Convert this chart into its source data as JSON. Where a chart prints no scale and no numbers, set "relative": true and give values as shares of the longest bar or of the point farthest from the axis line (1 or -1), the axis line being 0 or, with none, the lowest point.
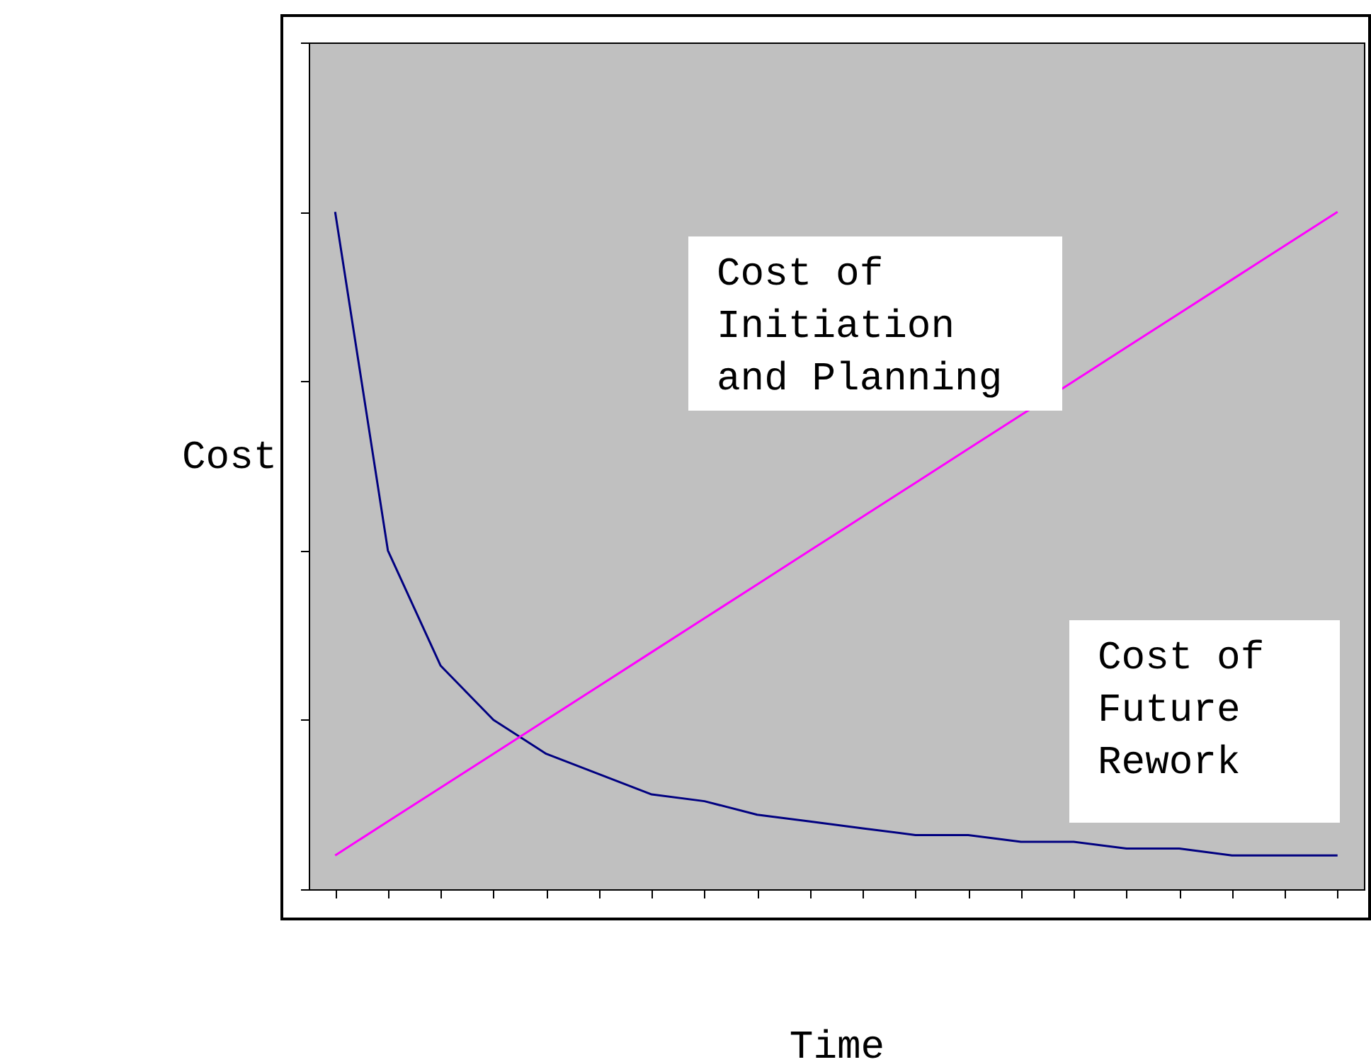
{
  "chart_data": {
    "type": "line",
    "relative": true,
    "xlabel": "Time",
    "ylabel": "Cost",
    "grid": false,
    "marker": "none",
    "line_style": "solid",
    "categories": [
      null,
      null,
      null,
      null,
      null,
      null,
      null,
      null,
      null,
      null,
      null,
      null,
      null,
      null,
      null,
      null,
      null,
      null,
      null,
      null
    ],
    "series": [
      {
        "color": "#000080",
        "values": [
          1,
          0.5,
          0.33,
          0.25,
          0.2,
          0.17,
          0.14,
          0.13,
          0.11,
          0.1,
          0.09,
          0.08,
          0.08,
          0.07,
          0.07,
          0.06,
          0.06,
          0.05,
          0.05,
          0.05
        ]
      },
      {
        "color": "#ff00ff",
        "values": [
          0.05,
          0.1,
          0.15,
          0.2,
          0.25,
          0.3,
          0.35,
          0.4,
          0.45,
          0.5,
          0.55,
          0.6,
          0.65,
          0.7,
          0.75,
          0.8,
          0.85,
          0.9,
          0.95,
          1
        ]
      }
    ],
    "annotations": [
      "Cost of Initiation and Planning",
      "Cost of Future Rework"
    ]
  }
}
